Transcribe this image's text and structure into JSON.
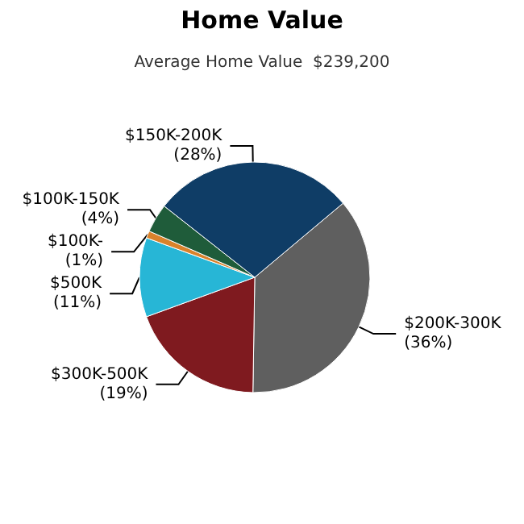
{
  "chart_data": {
    "type": "pie",
    "title": "Home Value",
    "subtitle": "Average Home Value  $239,200",
    "categories": [
      "$200K-300K",
      "$300K-500K",
      "$500K",
      "$100K-",
      "$100K-150K",
      "$150K-200K"
    ],
    "values": [
      36,
      19,
      11,
      1,
      4,
      28
    ],
    "value_labels": [
      "(36%)",
      "(19%)",
      "(11%)",
      "(1%)",
      "(4%)",
      "(28%)"
    ],
    "colors": [
      "#5f5f5f",
      "#7f1a1f",
      "#27b6d6",
      "#d9822b",
      "#1f5c3a",
      "#0f3d66"
    ],
    "legend": false
  }
}
